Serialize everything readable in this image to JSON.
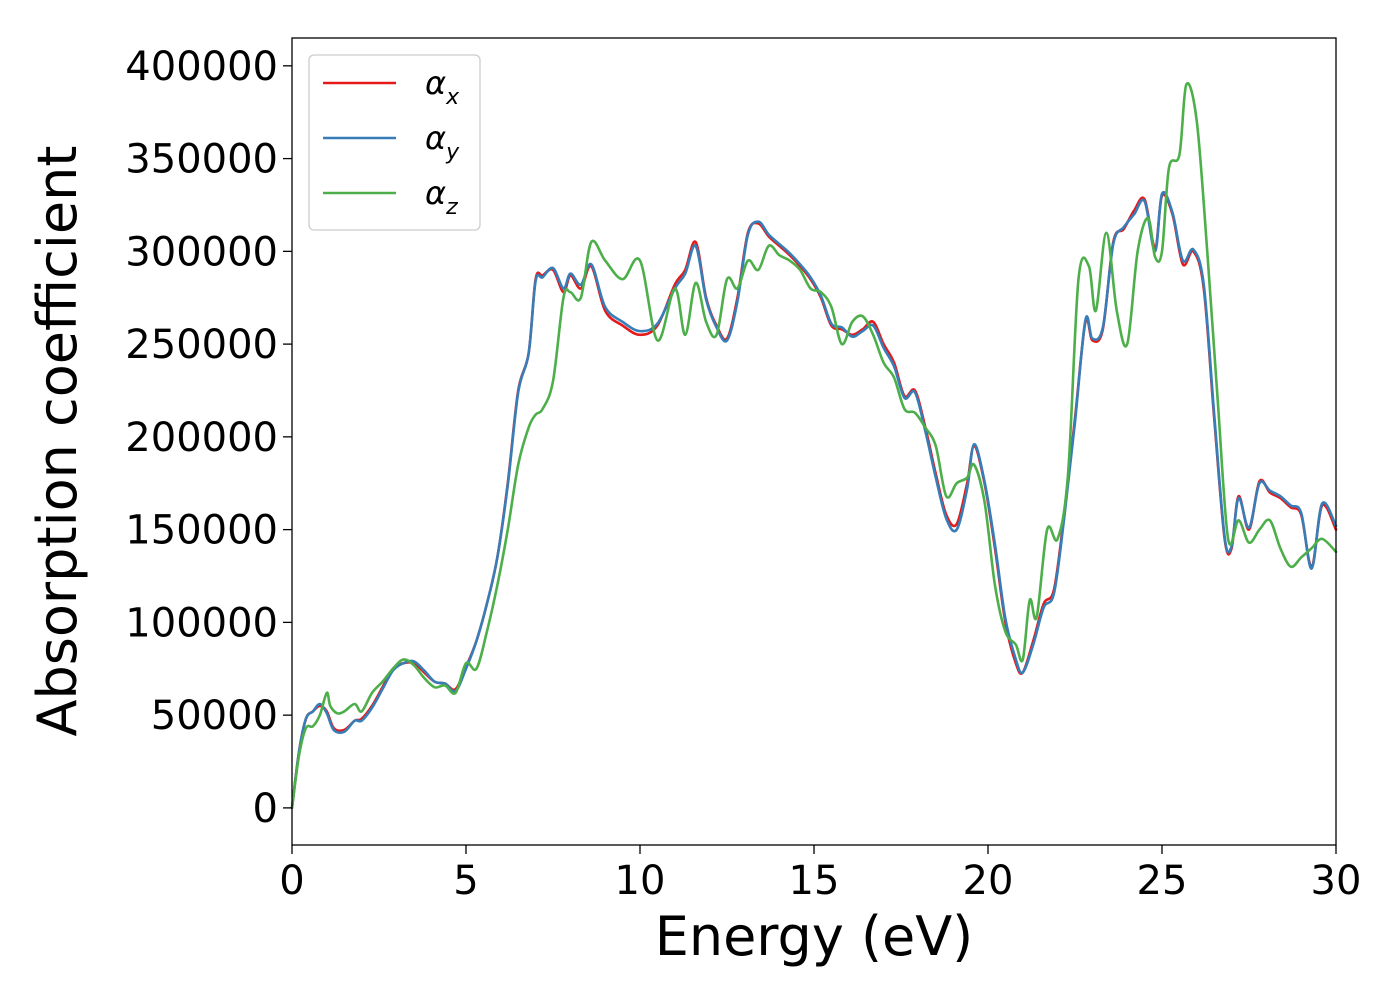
{
  "chart_data": {
    "type": "line",
    "title": "",
    "xlabel": "Energy (eV)",
    "ylabel": "Absorption coefficient",
    "xlim": [
      0,
      30
    ],
    "ylim": [
      -20000,
      415000
    ],
    "xticks": [
      0,
      5,
      10,
      15,
      20,
      25,
      30
    ],
    "xtick_labels": [
      "0",
      "5",
      "10",
      "15",
      "20",
      "25",
      "30"
    ],
    "yticks": [
      0,
      50000,
      100000,
      150000,
      200000,
      250000,
      300000,
      350000,
      400000
    ],
    "ytick_labels": [
      "0",
      "50000",
      "100000",
      "150000",
      "200000",
      "250000",
      "300000",
      "350000",
      "400000"
    ],
    "grid": false,
    "legend_position": "top-left",
    "series": [
      {
        "name": "α_x",
        "label_main": "α",
        "label_sub": "x",
        "color": "#e41a1c",
        "x": [
          0,
          0.2,
          0.4,
          0.6,
          0.8,
          1.0,
          1.2,
          1.5,
          1.8,
          2.0,
          2.3,
          2.6,
          2.9,
          3.2,
          3.5,
          3.8,
          4.1,
          4.4,
          4.7,
          5.0,
          5.3,
          5.6,
          5.9,
          6.2,
          6.5,
          6.8,
          7.0,
          7.2,
          7.5,
          7.8,
          8.0,
          8.3,
          8.6,
          9.0,
          9.5,
          10.0,
          10.5,
          11.0,
          11.3,
          11.6,
          11.9,
          12.2,
          12.5,
          12.8,
          13.1,
          13.4,
          13.7,
          14.0,
          14.3,
          14.6,
          14.9,
          15.2,
          15.5,
          15.8,
          16.1,
          16.4,
          16.7,
          17.0,
          17.3,
          17.6,
          17.9,
          18.2,
          18.5,
          18.8,
          19.1,
          19.4,
          19.6,
          19.9,
          20.2,
          20.5,
          20.8,
          21.0,
          21.3,
          21.6,
          21.9,
          22.2,
          22.5,
          22.8,
          23.0,
          23.3,
          23.6,
          23.9,
          24.2,
          24.5,
          24.8,
          25.0,
          25.3,
          25.6,
          25.9,
          26.2,
          26.5,
          26.8,
          27.0,
          27.2,
          27.5,
          27.8,
          28.1,
          28.4,
          28.7,
          29.0,
          29.3,
          29.6,
          30.0
        ],
        "y": [
          0,
          30000,
          48000,
          52000,
          55000,
          52000,
          43000,
          42000,
          47000,
          48000,
          55000,
          65000,
          75000,
          78000,
          78000,
          73000,
          68000,
          67000,
          64000,
          76000,
          90000,
          110000,
          135000,
          175000,
          225000,
          245000,
          285000,
          287000,
          290000,
          278000,
          287000,
          280000,
          292000,
          268000,
          260000,
          255000,
          260000,
          282000,
          290000,
          305000,
          275000,
          260000,
          253000,
          275000,
          310000,
          315000,
          308000,
          303000,
          298000,
          292000,
          285000,
          275000,
          260000,
          258000,
          255000,
          258000,
          262000,
          250000,
          240000,
          222000,
          225000,
          205000,
          180000,
          158000,
          153000,
          175000,
          195000,
          175000,
          140000,
          100000,
          78000,
          73000,
          90000,
          110000,
          118000,
          160000,
          210000,
          262000,
          252000,
          258000,
          305000,
          312000,
          322000,
          328000,
          302000,
          330000,
          320000,
          293000,
          300000,
          280000,
          210000,
          145000,
          140000,
          168000,
          150000,
          176000,
          170000,
          167000,
          162000,
          158000,
          130000,
          163000,
          150000
        ]
      },
      {
        "name": "α_y",
        "label_main": "α",
        "label_sub": "y",
        "color": "#377eb8",
        "x": [
          0,
          0.2,
          0.4,
          0.6,
          0.8,
          1.0,
          1.2,
          1.5,
          1.8,
          2.0,
          2.3,
          2.6,
          2.9,
          3.2,
          3.5,
          3.8,
          4.1,
          4.4,
          4.7,
          5.0,
          5.3,
          5.6,
          5.9,
          6.2,
          6.5,
          6.8,
          7.0,
          7.2,
          7.5,
          7.8,
          8.0,
          8.3,
          8.6,
          9.0,
          9.5,
          10.0,
          10.5,
          11.0,
          11.3,
          11.6,
          11.9,
          12.2,
          12.5,
          12.8,
          13.1,
          13.4,
          13.7,
          14.0,
          14.3,
          14.6,
          14.9,
          15.2,
          15.5,
          15.8,
          16.1,
          16.4,
          16.7,
          17.0,
          17.3,
          17.6,
          17.9,
          18.2,
          18.5,
          18.8,
          19.1,
          19.4,
          19.6,
          19.9,
          20.2,
          20.5,
          20.8,
          21.0,
          21.3,
          21.6,
          21.9,
          22.2,
          22.5,
          22.8,
          23.0,
          23.3,
          23.6,
          23.9,
          24.2,
          24.5,
          24.8,
          25.0,
          25.3,
          25.6,
          25.9,
          26.2,
          26.5,
          26.8,
          27.0,
          27.2,
          27.5,
          27.8,
          28.1,
          28.4,
          28.7,
          29.0,
          29.3,
          29.6,
          30.0
        ],
        "y": [
          0,
          30000,
          48000,
          52000,
          56000,
          51000,
          42000,
          41000,
          47000,
          47000,
          54000,
          64000,
          74000,
          78000,
          79000,
          74000,
          68000,
          67000,
          63000,
          75000,
          90000,
          110000,
          135000,
          174000,
          224000,
          245000,
          284000,
          286000,
          291000,
          280000,
          288000,
          282000,
          293000,
          270000,
          262000,
          257000,
          261000,
          280000,
          288000,
          303000,
          274000,
          259000,
          252000,
          273000,
          309000,
          316000,
          309000,
          304000,
          299000,
          293000,
          286000,
          276000,
          261000,
          259000,
          254000,
          257000,
          260000,
          248000,
          238000,
          221000,
          224000,
          203000,
          178000,
          156000,
          150000,
          172000,
          196000,
          176000,
          142000,
          102000,
          80000,
          73000,
          88000,
          108000,
          116000,
          158000,
          208000,
          263000,
          253000,
          259000,
          304000,
          313000,
          320000,
          327000,
          300000,
          331000,
          321000,
          295000,
          301000,
          282000,
          212000,
          146000,
          141000,
          167000,
          151000,
          175000,
          171000,
          168000,
          163000,
          159000,
          129000,
          164000,
          152000
        ]
      },
      {
        "name": "α_z",
        "label_main": "α",
        "label_sub": "z",
        "color": "#4daf4a",
        "x": [
          0,
          0.2,
          0.4,
          0.6,
          0.8,
          1.0,
          1.1,
          1.3,
          1.5,
          1.8,
          2.0,
          2.3,
          2.6,
          2.9,
          3.2,
          3.5,
          3.8,
          4.1,
          4.4,
          4.7,
          5.0,
          5.3,
          5.6,
          5.9,
          6.2,
          6.5,
          6.8,
          7.0,
          7.2,
          7.5,
          7.8,
          8.0,
          8.3,
          8.6,
          9.0,
          9.5,
          10.0,
          10.5,
          11.0,
          11.3,
          11.6,
          11.9,
          12.2,
          12.5,
          12.8,
          13.1,
          13.4,
          13.7,
          14.0,
          14.3,
          14.6,
          14.9,
          15.2,
          15.5,
          15.8,
          16.1,
          16.4,
          16.7,
          17.0,
          17.3,
          17.6,
          17.9,
          18.2,
          18.5,
          18.8,
          19.1,
          19.4,
          19.6,
          19.9,
          20.2,
          20.5,
          20.8,
          21.0,
          21.2,
          21.4,
          21.7,
          22.0,
          22.3,
          22.6,
          22.9,
          23.1,
          23.4,
          23.7,
          24.0,
          24.3,
          24.6,
          24.8,
          25.0,
          25.2,
          25.5,
          25.7,
          26.0,
          26.3,
          26.6,
          26.9,
          27.2,
          27.5,
          27.8,
          28.1,
          28.4,
          28.7,
          29.0,
          29.3,
          29.6,
          30.0
        ],
        "y": [
          0,
          28000,
          43000,
          44000,
          50000,
          62000,
          55000,
          51000,
          52000,
          56000,
          52000,
          62000,
          68000,
          75000,
          80000,
          77000,
          70000,
          65000,
          66000,
          62000,
          78000,
          75000,
          95000,
          120000,
          150000,
          185000,
          205000,
          212000,
          215000,
          230000,
          275000,
          278000,
          275000,
          305000,
          295000,
          285000,
          295000,
          252000,
          280000,
          255000,
          283000,
          262000,
          255000,
          285000,
          280000,
          295000,
          290000,
          303000,
          298000,
          295000,
          290000,
          280000,
          278000,
          270000,
          250000,
          262000,
          265000,
          255000,
          240000,
          232000,
          215000,
          213000,
          205000,
          195000,
          168000,
          175000,
          178000,
          185000,
          165000,
          120000,
          95000,
          88000,
          80000,
          112000,
          103000,
          150000,
          145000,
          180000,
          285000,
          292000,
          268000,
          310000,
          268000,
          250000,
          300000,
          318000,
          297000,
          300000,
          345000,
          352000,
          390000,
          370000,
          300000,
          220000,
          145000,
          155000,
          143000,
          150000,
          155000,
          140000,
          130000,
          135000,
          140000,
          145000,
          138000
        ]
      }
    ]
  }
}
